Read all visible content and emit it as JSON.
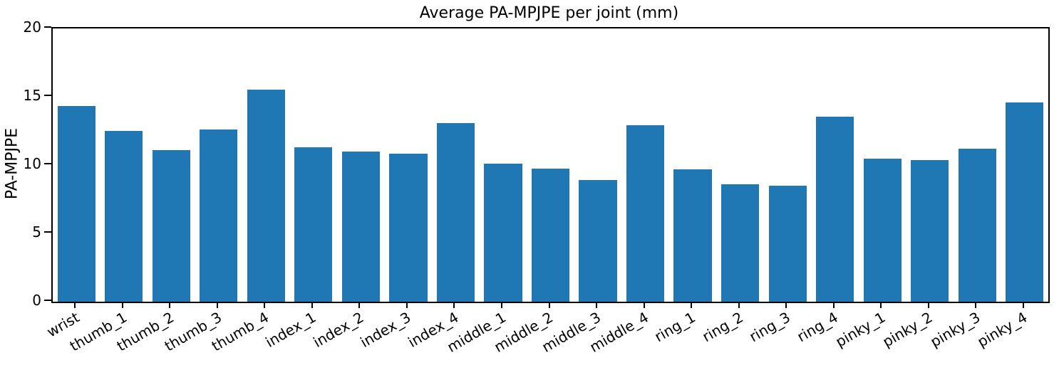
{
  "chart_data": {
    "type": "bar",
    "title": "Average PA-MPJPE per joint (mm)",
    "xlabel": "",
    "ylabel": "PA-MPJPE",
    "ylim": [
      0,
      20
    ],
    "yticks": [
      0,
      5,
      10,
      15,
      20
    ],
    "grid": false,
    "legend": false,
    "bar_color": "#1f77b4",
    "axis_color": "#000000",
    "background_color": "#ffffff",
    "categories": [
      "wrist",
      "thumb_1",
      "thumb_2",
      "thumb_3",
      "thumb_4",
      "index_1",
      "index_2",
      "index_3",
      "index_4",
      "middle_1",
      "middle_2",
      "middle_3",
      "middle_4",
      "ring_1",
      "ring_2",
      "ring_3",
      "ring_4",
      "pinky_1",
      "pinky_2",
      "pinky_3",
      "pinky_4"
    ],
    "values": [
      14.3,
      12.5,
      11.1,
      12.6,
      15.5,
      11.3,
      11.0,
      10.85,
      13.05,
      10.1,
      9.75,
      8.9,
      12.9,
      9.7,
      8.6,
      8.5,
      13.55,
      10.45,
      10.35,
      11.2,
      14.6
    ]
  }
}
